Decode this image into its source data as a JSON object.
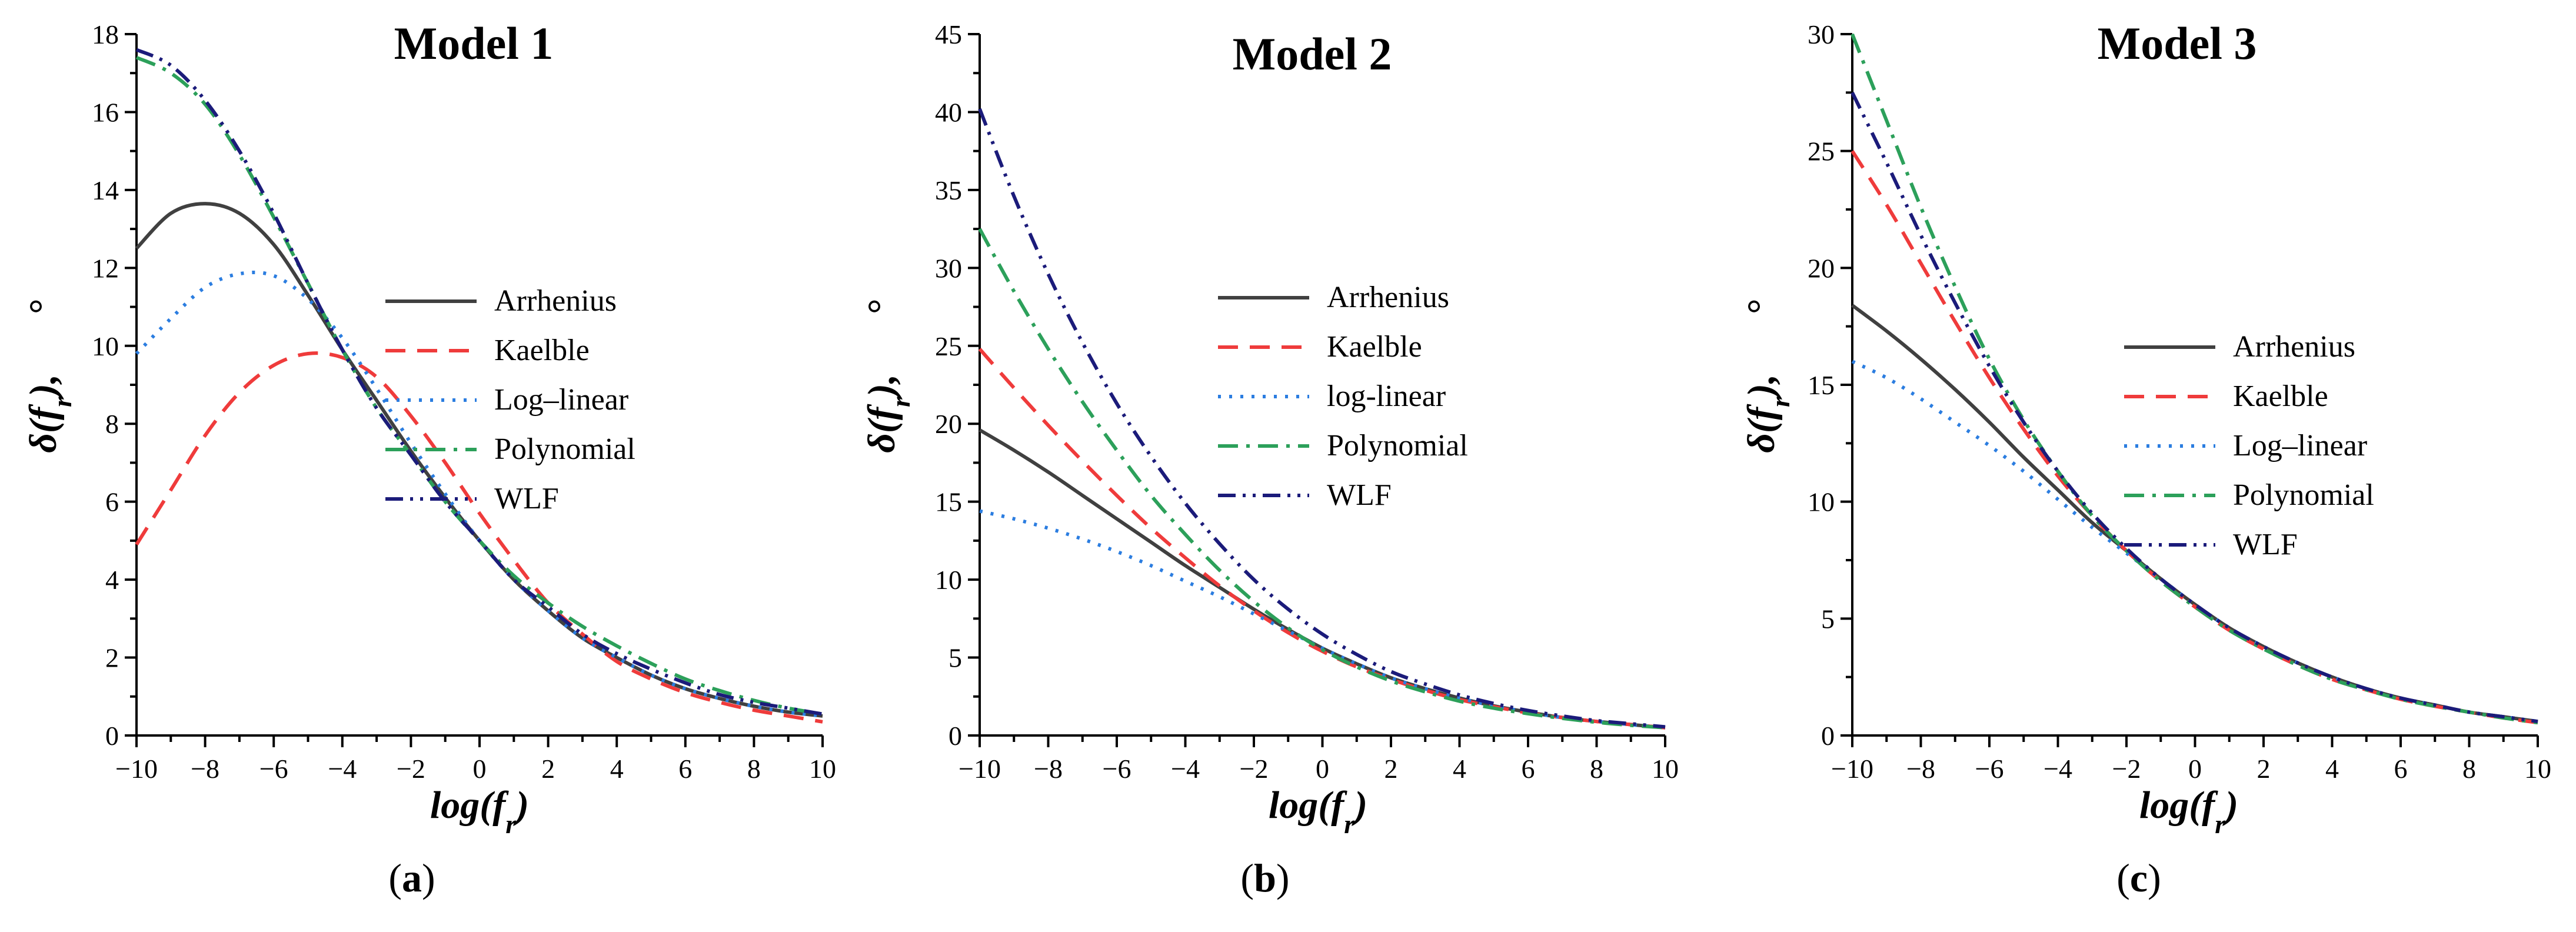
{
  "chart_data": [
    {
      "type": "line",
      "title": "Model 1",
      "subfigure_label": "a",
      "xlabel": "log(f_r)",
      "ylabel": "δ(f_r), °",
      "xlim": [
        -10,
        10
      ],
      "ylim": [
        0,
        18
      ],
      "xticks": [
        -10,
        -8,
        -6,
        -4,
        -2,
        0,
        2,
        4,
        6,
        8,
        10
      ],
      "yticks": [
        0,
        2,
        4,
        6,
        8,
        10,
        12,
        14,
        16,
        18
      ],
      "x": [
        -10,
        -9,
        -8,
        -7,
        -6,
        -5,
        -4,
        -3,
        -2,
        -1,
        0,
        1,
        2,
        3,
        4,
        5,
        6,
        7,
        8,
        9,
        10
      ],
      "series": [
        {
          "name": "Arrhenius",
          "color": "#404040",
          "dash": "solid",
          "values": [
            12.5,
            13.4,
            13.65,
            13.4,
            12.6,
            11.3,
            9.9,
            8.6,
            7.3,
            6.1,
            5.0,
            4.0,
            3.2,
            2.5,
            2.0,
            1.55,
            1.2,
            0.95,
            0.75,
            0.6,
            0.5
          ]
        },
        {
          "name": "Kaelble",
          "color": "#ef3b3b",
          "dash": "dashed",
          "values": [
            4.9,
            6.3,
            7.7,
            8.8,
            9.5,
            9.8,
            9.7,
            9.2,
            8.2,
            7.0,
            5.7,
            4.5,
            3.4,
            2.6,
            1.9,
            1.45,
            1.1,
            0.85,
            0.65,
            0.5,
            0.35
          ]
        },
        {
          "name": "Log–linear",
          "color": "#2b7de0",
          "dash": "dotted",
          "values": [
            9.8,
            10.7,
            11.5,
            11.85,
            11.8,
            11.2,
            10.2,
            8.9,
            7.5,
            6.2,
            5.0,
            4.0,
            3.2,
            2.5,
            2.0,
            1.55,
            1.2,
            0.95,
            0.75,
            0.6,
            0.5
          ]
        },
        {
          "name": "Polynomial",
          "color": "#2ca05a",
          "dash": "dashdot",
          "values": [
            17.4,
            17.0,
            16.2,
            14.9,
            13.3,
            11.6,
            9.9,
            8.4,
            7.2,
            6.0,
            5.0,
            4.1,
            3.4,
            2.8,
            2.3,
            1.85,
            1.45,
            1.15,
            0.9,
            0.7,
            0.55
          ]
        },
        {
          "name": "WLF",
          "color": "#1b1b7a",
          "dash": "dashdotdot",
          "values": [
            17.6,
            17.2,
            16.3,
            15.0,
            13.4,
            11.6,
            9.9,
            8.4,
            7.2,
            6.0,
            5.0,
            4.0,
            3.3,
            2.6,
            2.1,
            1.7,
            1.35,
            1.05,
            0.85,
            0.7,
            0.55
          ]
        }
      ]
    },
    {
      "type": "line",
      "title": "Model 2",
      "subfigure_label": "b",
      "xlabel": "log(f_r)",
      "ylabel": "δ(f_r), °",
      "xlim": [
        -10,
        10
      ],
      "ylim": [
        0,
        45
      ],
      "xticks": [
        -10,
        -8,
        -6,
        -4,
        -2,
        0,
        2,
        4,
        6,
        8,
        10
      ],
      "yticks": [
        0,
        5,
        10,
        15,
        20,
        25,
        30,
        35,
        40,
        45
      ],
      "x": [
        -10,
        -9,
        -8,
        -7,
        -6,
        -5,
        -4,
        -3,
        -2,
        -1,
        0,
        1,
        2,
        3,
        4,
        5,
        6,
        7,
        8,
        9,
        10
      ],
      "series": [
        {
          "name": "Arrhenius",
          "color": "#404040",
          "dash": "solid",
          "values": [
            19.6,
            18.3,
            16.9,
            15.4,
            13.9,
            12.4,
            10.9,
            9.5,
            8.1,
            6.8,
            5.6,
            4.6,
            3.7,
            3.0,
            2.4,
            1.9,
            1.5,
            1.15,
            0.9,
            0.7,
            0.5
          ]
        },
        {
          "name": "Kaelble",
          "color": "#ef3b3b",
          "dash": "dashed",
          "values": [
            24.8,
            22.3,
            19.9,
            17.6,
            15.4,
            13.3,
            11.4,
            9.6,
            8.0,
            6.6,
            5.4,
            4.4,
            3.6,
            2.9,
            2.3,
            1.85,
            1.45,
            1.15,
            0.9,
            0.7,
            0.5
          ]
        },
        {
          "name": "log-linear",
          "color": "#2b7de0",
          "dash": "dotted",
          "values": [
            14.4,
            13.9,
            13.3,
            12.6,
            11.8,
            10.9,
            9.9,
            8.9,
            7.8,
            6.7,
            5.6,
            4.6,
            3.7,
            3.0,
            2.4,
            1.9,
            1.5,
            1.15,
            0.9,
            0.7,
            0.5
          ]
        },
        {
          "name": "Polynomial",
          "color": "#2ca05a",
          "dash": "dashdot",
          "values": [
            32.5,
            28.5,
            24.8,
            21.4,
            18.3,
            15.4,
            12.9,
            10.6,
            8.6,
            6.9,
            5.5,
            4.4,
            3.5,
            2.8,
            2.2,
            1.75,
            1.4,
            1.1,
            0.85,
            0.65,
            0.5
          ]
        },
        {
          "name": "WLF",
          "color": "#1b1b7a",
          "dash": "dashdotdot",
          "values": [
            40.2,
            34.6,
            29.6,
            25.2,
            21.3,
            17.9,
            14.9,
            12.3,
            10.0,
            8.1,
            6.5,
            5.2,
            4.1,
            3.3,
            2.6,
            2.05,
            1.6,
            1.25,
            0.95,
            0.75,
            0.55
          ]
        }
      ]
    },
    {
      "type": "line",
      "title": "Model 3",
      "subfigure_label": "c",
      "xlabel": "log(f_r)",
      "ylabel": "δ(f_r), °",
      "xlim": [
        -10,
        10
      ],
      "ylim": [
        0,
        30
      ],
      "xticks": [
        -10,
        -8,
        -6,
        -4,
        -2,
        0,
        2,
        4,
        6,
        8,
        10
      ],
      "yticks": [
        0,
        5,
        10,
        15,
        20,
        25,
        30
      ],
      "x": [
        -10,
        -9,
        -8,
        -7,
        -6,
        -5,
        -4,
        -3,
        -2,
        -1,
        0,
        1,
        2,
        3,
        4,
        5,
        6,
        7,
        8,
        9,
        10
      ],
      "series": [
        {
          "name": "Arrhenius",
          "color": "#404040",
          "dash": "solid",
          "values": [
            18.4,
            17.3,
            16.1,
            14.8,
            13.4,
            11.9,
            10.5,
            9.1,
            7.9,
            6.7,
            5.6,
            4.6,
            3.8,
            3.1,
            2.5,
            2.0,
            1.6,
            1.3,
            1.0,
            0.8,
            0.6
          ]
        },
        {
          "name": "Kaelble",
          "color": "#ef3b3b",
          "dash": "dashed",
          "values": [
            25.0,
            22.7,
            20.2,
            17.7,
            15.3,
            13.1,
            11.1,
            9.4,
            7.9,
            6.6,
            5.5,
            4.5,
            3.7,
            3.0,
            2.4,
            1.95,
            1.55,
            1.25,
            1.0,
            0.75,
            0.55
          ]
        },
        {
          "name": "Log–linear",
          "color": "#2b7de0",
          "dash": "dotted",
          "values": [
            16.0,
            15.3,
            14.4,
            13.4,
            12.4,
            11.3,
            10.1,
            8.9,
            7.8,
            6.7,
            5.6,
            4.6,
            3.8,
            3.1,
            2.5,
            2.0,
            1.6,
            1.3,
            1.0,
            0.8,
            0.6
          ]
        },
        {
          "name": "Polynomial",
          "color": "#2ca05a",
          "dash": "dashdot",
          "values": [
            30.0,
            26.3,
            22.6,
            19.2,
            16.1,
            13.5,
            11.3,
            9.4,
            7.9,
            6.6,
            5.5,
            4.5,
            3.7,
            3.0,
            2.4,
            1.95,
            1.55,
            1.25,
            1.0,
            0.75,
            0.55
          ]
        },
        {
          "name": "WLF",
          "color": "#1b1b7a",
          "dash": "dashdotdot",
          "values": [
            27.5,
            24.5,
            21.4,
            18.5,
            15.8,
            13.4,
            11.3,
            9.5,
            8.0,
            6.7,
            5.6,
            4.6,
            3.8,
            3.1,
            2.5,
            2.0,
            1.6,
            1.3,
            1.0,
            0.8,
            0.6
          ]
        }
      ]
    }
  ]
}
